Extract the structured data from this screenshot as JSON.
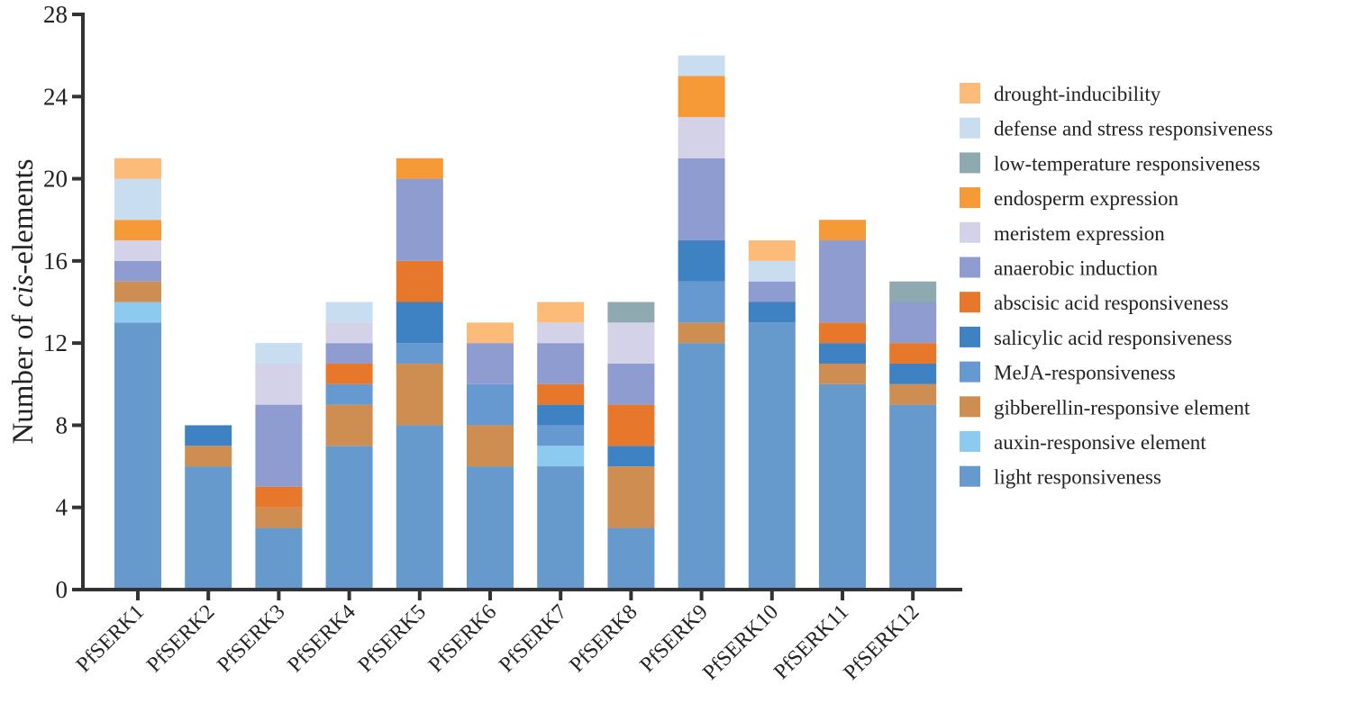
{
  "chart_data": {
    "type": "bar",
    "stacked": true,
    "title": "",
    "xlabel": "",
    "ylabel_parts": [
      "Number of ",
      "cis",
      "-elements"
    ],
    "ylim": [
      0,
      28
    ],
    "yticks": [
      0,
      4,
      8,
      12,
      16,
      20,
      24,
      28
    ],
    "grid": false,
    "legend_position": "right",
    "categories": [
      "PfSERK1",
      "PfSERK2",
      "PfSERK3",
      "PfSERK4",
      "PfSERK5",
      "PfSERK6",
      "PfSERK7",
      "PfSERK8",
      "PfSERK9",
      "PfSERK10",
      "PfSERK11",
      "PfSERK12"
    ],
    "series": [
      {
        "name": "light responsiveness",
        "color": "#6699cc",
        "values": [
          13,
          6,
          3,
          7,
          8,
          6,
          6,
          3,
          12,
          13,
          10,
          9
        ]
      },
      {
        "name": "auxin-responsive element",
        "color": "#8ccbef",
        "values": [
          1,
          0,
          0,
          0,
          0,
          0,
          1,
          0,
          0,
          0,
          0,
          0
        ]
      },
      {
        "name": "gibberellin-responsive element",
        "color": "#cf8e51",
        "values": [
          1,
          1,
          1,
          2,
          3,
          2,
          0,
          3,
          1,
          0,
          1,
          1
        ]
      },
      {
        "name": "MeJA-responsiveness",
        "color": "#6699d0",
        "values": [
          0,
          0,
          0,
          1,
          1,
          2,
          1,
          0,
          2,
          0,
          0,
          0
        ]
      },
      {
        "name": "salicylic acid responsiveness",
        "color": "#3f82c4",
        "values": [
          0,
          1,
          0,
          0,
          2,
          0,
          1,
          1,
          2,
          1,
          1,
          1
        ]
      },
      {
        "name": "abscisic acid responsiveness",
        "color": "#e6772b",
        "values": [
          0,
          0,
          1,
          1,
          2,
          0,
          1,
          2,
          0,
          0,
          1,
          1
        ]
      },
      {
        "name": "anaerobic induction",
        "color": "#8f9ccf",
        "values": [
          1,
          0,
          4,
          1,
          4,
          2,
          2,
          2,
          4,
          1,
          4,
          2
        ]
      },
      {
        "name": "meristem expression",
        "color": "#d4d2e8",
        "values": [
          1,
          0,
          2,
          1,
          0,
          0,
          1,
          2,
          2,
          0,
          0,
          0
        ]
      },
      {
        "name": "endosperm expression",
        "color": "#f69a38",
        "values": [
          1,
          0,
          0,
          0,
          1,
          0,
          0,
          0,
          2,
          0,
          1,
          0
        ]
      },
      {
        "name": "low-temperature responsiveness",
        "color": "#8ea9b0",
        "values": [
          0,
          0,
          0,
          0,
          0,
          0,
          0,
          1,
          0,
          0,
          0,
          1
        ]
      },
      {
        "name": "defense and stress responsiveness",
        "color": "#c9ddf1",
        "values": [
          2,
          0,
          1,
          1,
          0,
          0,
          0,
          0,
          1,
          1,
          0,
          0
        ]
      },
      {
        "name": "drought-inducibility",
        "color": "#fcbb79",
        "values": [
          1,
          0,
          0,
          0,
          0,
          1,
          1,
          0,
          0,
          1,
          0,
          0
        ]
      }
    ]
  }
}
